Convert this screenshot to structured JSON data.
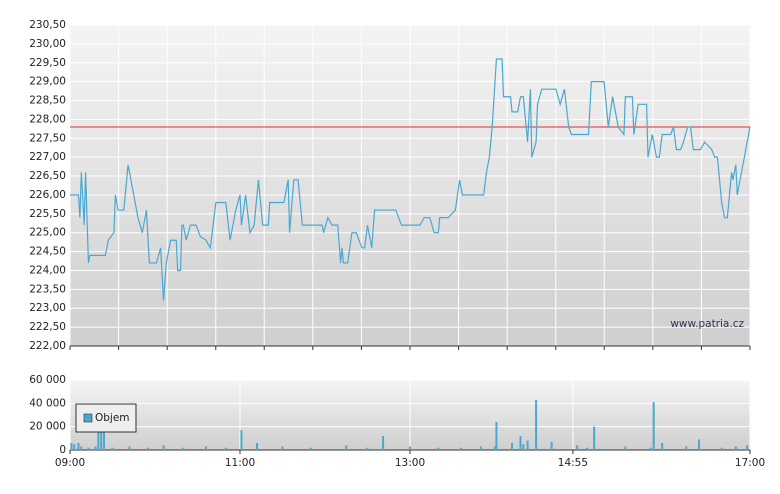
{
  "chart_data": [
    {
      "type": "line",
      "color": "#4aa8d0",
      "reference_line": 227.8,
      "reference_color": "#e03030",
      "watermark": "www.patria.cz",
      "xlim": [
        0,
        480
      ],
      "xgrid": [
        0,
        34.3,
        68.6,
        102.9,
        137.1,
        171.4,
        205.7,
        240,
        274.3,
        308.6,
        342.9,
        377.1,
        411.4,
        445.7,
        480
      ],
      "ylim": [
        222,
        230.5
      ],
      "yticks": [
        {
          "value": 222,
          "label": "222,00"
        },
        {
          "value": 222.5,
          "label": "222,50"
        },
        {
          "value": 223,
          "label": "223,00"
        },
        {
          "value": 223.5,
          "label": "223,50"
        },
        {
          "value": 224,
          "label": "224,00"
        },
        {
          "value": 224.5,
          "label": "224,50"
        },
        {
          "value": 225,
          "label": "225,00"
        },
        {
          "value": 225.5,
          "label": "225,50"
        },
        {
          "value": 226,
          "label": "226,00"
        },
        {
          "value": 226.5,
          "label": "226,50"
        },
        {
          "value": 227,
          "label": "227,00"
        },
        {
          "value": 227.5,
          "label": "227,50"
        },
        {
          "value": 228,
          "label": "228,00"
        },
        {
          "value": 228.5,
          "label": "228,50"
        },
        {
          "value": 229,
          "label": "229,00"
        },
        {
          "value": 229.5,
          "label": "229,50"
        },
        {
          "value": 230,
          "label": "230,00"
        },
        {
          "value": 230.5,
          "label": "230,50"
        }
      ],
      "grid": true,
      "x": [
        0,
        6,
        7,
        8,
        10,
        11,
        13,
        14,
        25,
        27,
        31,
        32,
        34,
        38,
        40,
        41,
        45,
        48,
        51,
        54,
        56,
        61,
        64,
        66,
        68,
        71,
        75,
        76,
        78,
        79,
        80,
        82,
        85,
        89,
        92,
        96,
        99,
        103,
        110,
        113,
        117,
        120,
        121,
        124,
        127,
        130,
        133,
        136,
        140,
        141,
        151,
        154,
        155,
        158,
        161,
        164,
        175,
        178,
        179,
        182,
        185,
        189,
        191,
        192,
        193,
        196,
        199,
        202,
        206,
        208,
        210,
        213,
        215,
        230,
        234,
        247,
        250,
        254,
        257,
        260,
        261,
        267,
        272,
        275,
        277,
        292,
        294,
        296,
        298,
        301,
        305,
        306,
        311,
        312,
        316,
        318,
        320,
        323,
        325,
        326,
        329,
        330,
        333,
        343,
        346,
        349,
        352,
        354,
        366,
        368,
        377,
        380,
        383,
        387,
        391,
        392,
        397,
        398,
        401,
        407,
        408,
        411,
        414,
        416,
        418,
        424,
        426,
        428,
        431,
        433,
        436,
        438,
        440,
        445,
        448,
        453,
        455,
        457,
        460,
        462,
        464,
        467,
        468,
        470,
        471,
        480
      ],
      "values": [
        226.0,
        226.0,
        225.4,
        226.6,
        225.2,
        226.6,
        224.2,
        224.4,
        224.4,
        224.8,
        225.0,
        226.0,
        225.6,
        225.6,
        226.4,
        226.8,
        226.0,
        225.4,
        225.0,
        225.6,
        224.2,
        224.2,
        224.6,
        223.2,
        224.2,
        224.8,
        224.8,
        224.0,
        224.0,
        225.2,
        225.2,
        224.8,
        225.2,
        225.2,
        224.9,
        224.8,
        224.6,
        225.8,
        225.8,
        224.8,
        225.6,
        226.0,
        225.2,
        226.0,
        225.0,
        225.2,
        226.4,
        225.2,
        225.2,
        225.8,
        225.8,
        226.4,
        225.0,
        226.4,
        226.4,
        225.2,
        225.2,
        225.2,
        225.0,
        225.4,
        225.2,
        225.2,
        224.2,
        224.6,
        224.2,
        224.2,
        225.0,
        225.0,
        224.6,
        224.6,
        225.2,
        224.6,
        225.6,
        225.6,
        225.2,
        225.2,
        225.4,
        225.4,
        225.0,
        225.0,
        225.4,
        225.4,
        225.6,
        226.4,
        226.0,
        226.0,
        226.6,
        227.0,
        227.8,
        229.6,
        229.6,
        228.6,
        228.6,
        228.2,
        228.2,
        228.6,
        228.6,
        227.4,
        228.8,
        227.0,
        227.4,
        228.4,
        228.8,
        228.8,
        228.4,
        228.8,
        227.8,
        227.6,
        227.6,
        229.0,
        229.0,
        227.8,
        228.6,
        227.8,
        227.6,
        228.6,
        228.6,
        227.6,
        228.4,
        228.4,
        227.0,
        227.6,
        227.0,
        227.0,
        227.6,
        227.6,
        227.8,
        227.2,
        227.2,
        227.4,
        227.8,
        227.8,
        227.2,
        227.2,
        227.4,
        227.2,
        227.0,
        227.0,
        225.8,
        225.4,
        225.4,
        226.6,
        226.4,
        226.8,
        226.0,
        227.8
      ]
    },
    {
      "type": "bar",
      "xlim": [
        0,
        480
      ],
      "xticks": [
        {
          "value": 0,
          "label": "09:00"
        },
        {
          "value": 120,
          "label": "11:00"
        },
        {
          "value": 240,
          "label": "13:00"
        },
        {
          "value": 355,
          "label": "14:55"
        },
        {
          "value": 480,
          "label": "17:00"
        }
      ],
      "ylim": [
        0,
        60000
      ],
      "yticks": [
        0,
        {
          "value": 20000,
          "label": "20 000"
        },
        {
          "value": 40000,
          "label": "40 000"
        },
        {
          "value": 60000,
          "label": "60 000"
        }
      ],
      "grid": true,
      "series": [
        {
          "name": "Objem",
          "color": "#4aa8d0",
          "x": [
            1,
            3,
            6,
            8,
            13,
            18,
            20,
            22,
            24,
            30,
            42,
            55,
            66,
            80,
            96,
            110,
            121,
            132,
            150,
            170,
            195,
            210,
            221,
            240,
            260,
            276,
            290,
            300,
            301,
            312,
            318,
            320,
            323,
            329,
            340,
            358,
            365,
            370,
            392,
            410,
            412,
            418,
            435,
            444,
            460,
            470,
            478
          ],
          "values": [
            6000,
            5000,
            6000,
            3000,
            2000,
            3000,
            22000,
            20000,
            22000,
            2000,
            3000,
            2000,
            4000,
            2000,
            3000,
            2000,
            17000,
            6000,
            3000,
            2000,
            4000,
            2000,
            12000,
            3000,
            2000,
            2000,
            3000,
            3000,
            24000,
            6000,
            12000,
            5000,
            8000,
            43000,
            7000,
            4000,
            2000,
            20000,
            3000,
            2000,
            41000,
            6000,
            3000,
            9000,
            2000,
            3000,
            4000
          ]
        }
      ],
      "legend": "upper-left"
    }
  ]
}
